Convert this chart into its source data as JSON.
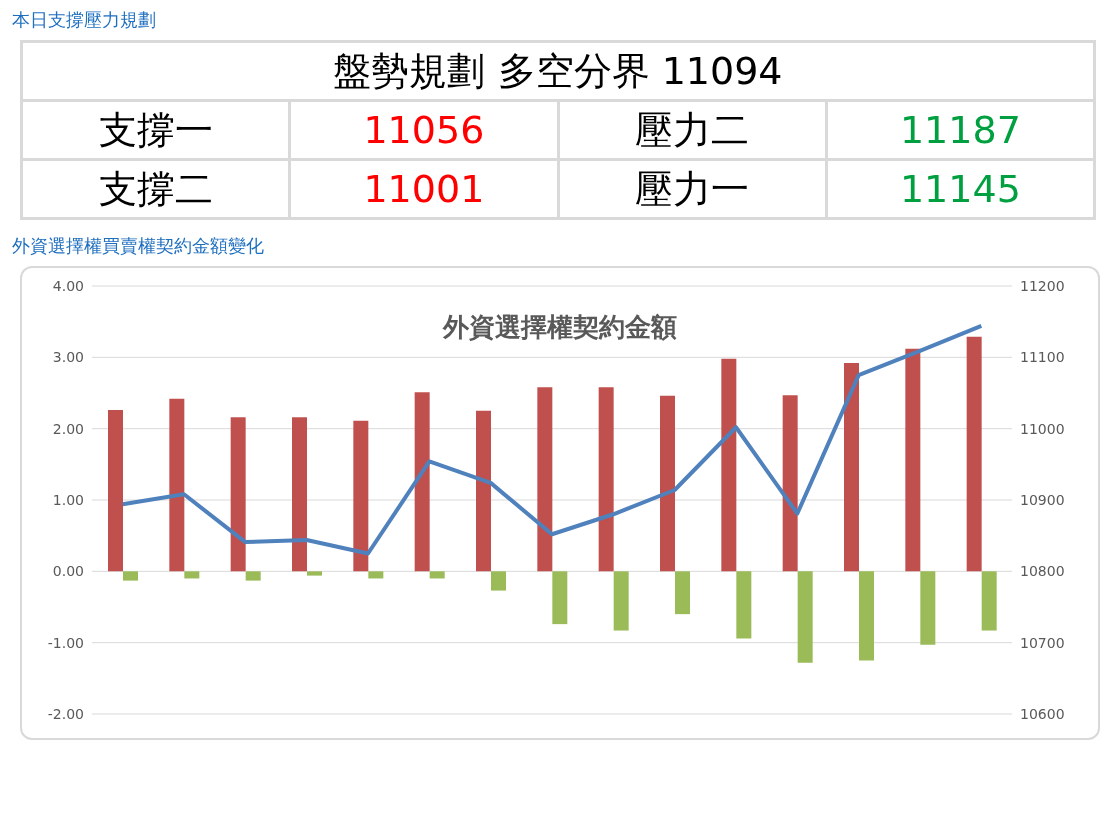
{
  "chart_data": [
    {
      "type": "other",
      "title": "本日支撐壓力規劃",
      "annotations": [
        "盤勢規劃 多空分界 11094",
        "支撐一",
        "11056",
        "壓力二",
        "11187",
        "支撐二",
        "11001",
        "壓力一",
        "11145"
      ],
      "colors": [
        "#000000",
        "#000000",
        "#ff0000",
        "#000000",
        "#00a040",
        "#000000",
        "#ff0000",
        "#000000",
        "#00a040"
      ]
    },
    {
      "type": "bar",
      "subtitle": "外資選擇權買賣權契約金額變化",
      "title": "外資選擇權契約金額",
      "categories": [
        null,
        null,
        null,
        null,
        null,
        null,
        null,
        null,
        null,
        null,
        null,
        null,
        null,
        null,
        null
      ],
      "series": [
        {
          "type": "bar",
          "color": "#c0504d",
          "values": [
            2.26,
            2.42,
            2.16,
            2.16,
            2.11,
            2.51,
            2.25,
            2.58,
            2.58,
            2.46,
            2.98,
            2.47,
            2.92,
            3.12,
            3.29
          ]
        },
        {
          "type": "bar",
          "color": "#9bbb59",
          "values": [
            -0.13,
            -0.1,
            -0.13,
            -0.06,
            -0.1,
            -0.1,
            -0.27,
            -0.74,
            -0.83,
            -0.6,
            -0.94,
            -1.28,
            -1.25,
            -1.03,
            -0.83
          ]
        },
        {
          "type": "line",
          "axis": "y2",
          "color": "#4f81bd",
          "values": [
            10894,
            10908,
            10841,
            10844,
            10825,
            10954,
            10924,
            10852,
            10880,
            10914,
            11002,
            10881,
            11075,
            11109,
            11144
          ]
        }
      ],
      "ylim": [
        -2,
        4
      ],
      "yticks": [
        {
          "value": -2,
          "label": "-2.00"
        },
        {
          "value": -1,
          "label": "-1.00"
        },
        {
          "value": 0,
          "label": "0.00"
        },
        {
          "value": 1,
          "label": "1.00"
        },
        {
          "value": 2,
          "label": "2.00"
        },
        {
          "value": 3,
          "label": "3.00"
        },
        {
          "value": 4,
          "label": "4.00"
        }
      ],
      "y2lim": [
        10600,
        11200
      ],
      "y2ticks": [
        10600,
        10700,
        10800,
        10900,
        11000,
        11100,
        11200
      ],
      "grid": "y",
      "legend": false,
      "tick_labels": "y",
      "marker": "none",
      "line_style": "solid"
    }
  ]
}
